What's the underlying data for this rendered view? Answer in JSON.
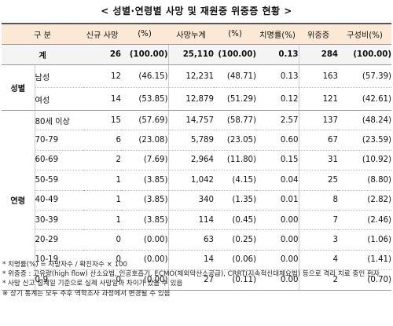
{
  "title": "< 성별·연령별 사망 및 재원중 위중증 현황 >",
  "headers": {
    "category": "구 분",
    "new_deaths": "신규 사망",
    "new_pct": "(%)",
    "cum_deaths": "사망누계",
    "cum_pct": "(%)",
    "cfr": "치명률(%)",
    "critical": "위중증",
    "composition": "구성비(%)"
  },
  "total": {
    "label": "계",
    "new_deaths": "26",
    "new_pct": "(100.00)",
    "cum_deaths": "25,110",
    "cum_pct": "(100.00)",
    "cfr": "0.13",
    "critical": "284",
    "composition": "(100.00)"
  },
  "gender_group": "성별",
  "gender_rows": [
    {
      "label": "남성",
      "new_deaths": "12",
      "new_pct": "(46.15)",
      "cum_deaths": "12,231",
      "cum_pct": "(48.71)",
      "cfr": "0.13",
      "critical": "163",
      "composition": "(57.39)"
    },
    {
      "label": "여성",
      "new_deaths": "14",
      "new_pct": "(53.85)",
      "cum_deaths": "12,879",
      "cum_pct": "(51.29)",
      "cfr": "0.12",
      "critical": "121",
      "composition": "(42.61)"
    }
  ],
  "age_group": "연령",
  "age_rows": [
    {
      "label": "80세 이상",
      "new_deaths": "15",
      "new_pct": "(57.69)",
      "cum_deaths": "14,757",
      "cum_pct": "(58.77)",
      "cfr": "2.57",
      "critical": "137",
      "composition": "(48.24)"
    },
    {
      "label": "70-79",
      "new_deaths": "6",
      "new_pct": "(23.08)",
      "cum_deaths": "5,789",
      "cum_pct": "(23.05)",
      "cfr": "0.60",
      "critical": "67",
      "composition": "(23.59)"
    },
    {
      "label": "60-69",
      "new_deaths": "2",
      "new_pct": "(7.69)",
      "cum_deaths": "2,964",
      "cum_pct": "(11.80)",
      "cfr": "0.15",
      "critical": "31",
      "composition": "(10.92)"
    },
    {
      "label": "50-59",
      "new_deaths": "1",
      "new_pct": "(3.85)",
      "cum_deaths": "1,042",
      "cum_pct": "(4.15)",
      "cfr": "0.04",
      "critical": "25",
      "composition": "(8.80)"
    },
    {
      "label": "40-49",
      "new_deaths": "1",
      "new_pct": "(3.85)",
      "cum_deaths": "340",
      "cum_pct": "(1.35)",
      "cfr": "0.01",
      "critical": "8",
      "composition": "(2.82)"
    },
    {
      "label": "30-39",
      "new_deaths": "1",
      "new_pct": "(3.85)",
      "cum_deaths": "114",
      "cum_pct": "(0.45)",
      "cfr": "0.00",
      "critical": "7",
      "composition": "(2.46)"
    },
    {
      "label": "20-29",
      "new_deaths": "0",
      "new_pct": "(0.00)",
      "cum_deaths": "63",
      "cum_pct": "(0.25)",
      "cfr": "0.00",
      "critical": "3",
      "composition": "(1.06)"
    },
    {
      "label": "10-19",
      "new_deaths": "0",
      "new_pct": "(0.00)",
      "cum_deaths": "14",
      "cum_pct": "(0.06)",
      "cfr": "0.00",
      "critical": "4",
      "composition": "(1.41)"
    },
    {
      "label": "0-9",
      "new_deaths": "0",
      "new_pct": "(0.00)",
      "cum_deaths": "27",
      "cum_pct": "(0.11)",
      "cfr": "0.00",
      "critical": "2",
      "composition": "(0.70)"
    }
  ],
  "notes": [
    "* 치명률(%) = 사망자수 / 확진자수 × 100",
    "* 위중증 : 고유량(high flow) 산소요법, 인공호흡기, ECMO(체외막산소공급), CRRT(지속적신대체요법) 등으로 격리 치료 중인 환자",
    "* 사망 신고 집계일 기준으로 실제 사망일과 차이가 있을 수 있음",
    "※ 상기 통계는 모두 추후 역학조사 과정에서 변경될 수 있음"
  ]
}
